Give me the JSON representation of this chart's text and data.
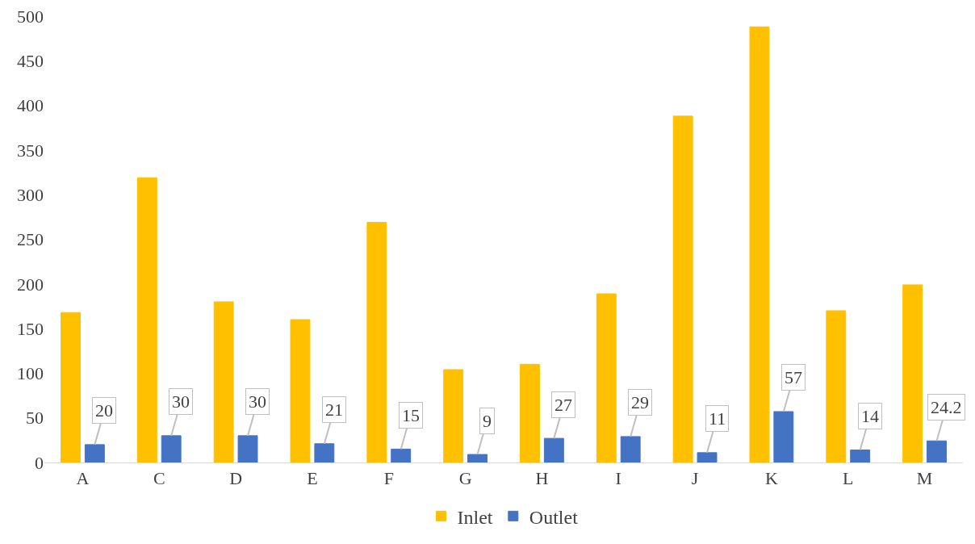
{
  "chart_data": {
    "type": "bar",
    "categories": [
      "A",
      "C",
      "D",
      "E",
      "F",
      "G",
      "H",
      "I",
      "J",
      "K",
      "L",
      "M"
    ],
    "series": [
      {
        "name": "Inlet",
        "color": "#ffc000",
        "values": [
          168,
          319,
          180,
          160,
          269,
          104,
          110,
          189,
          388,
          488,
          170,
          199
        ]
      },
      {
        "name": "Outlet",
        "color": "#4472c4",
        "values": [
          20,
          30,
          30,
          21,
          15,
          9,
          27,
          29,
          11,
          57,
          14,
          24.2
        ],
        "value_labels": [
          "20",
          "30",
          "30",
          "21",
          "15",
          "9",
          "27",
          "29",
          "11",
          "57",
          "14",
          "24.2"
        ]
      }
    ],
    "ylim": [
      0,
      500
    ],
    "yticks": [
      0,
      50,
      100,
      150,
      200,
      250,
      300,
      350,
      400,
      450,
      500
    ],
    "grid": false,
    "legend": "bottom"
  }
}
